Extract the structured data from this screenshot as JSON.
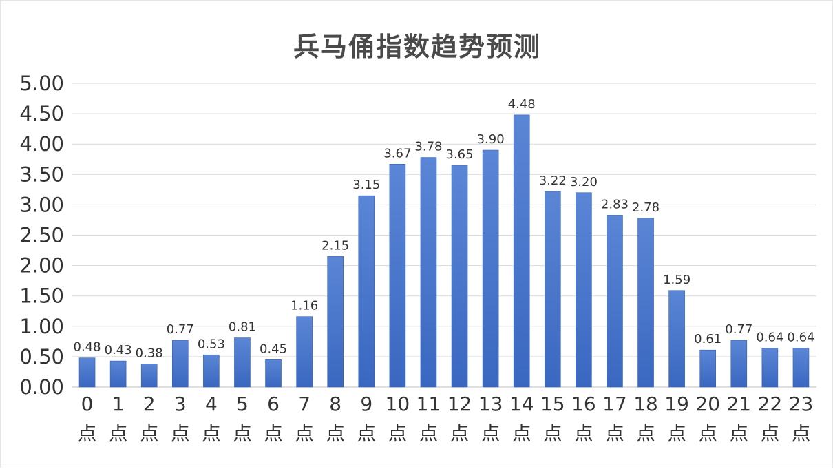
{
  "chart_data": {
    "type": "bar",
    "title": "兵马俑指数趋势预测",
    "xlabel": "",
    "ylabel": "",
    "ylim": [
      0,
      5
    ],
    "yticks": [
      "0.00",
      "0.50",
      "1.00",
      "1.50",
      "2.00",
      "2.50",
      "3.00",
      "3.50",
      "4.00",
      "4.50",
      "5.00"
    ],
    "categories": [
      "0",
      "1",
      "2",
      "3",
      "4",
      "5",
      "6",
      "7",
      "8",
      "9",
      "10",
      "11",
      "12",
      "13",
      "14",
      "15",
      "16",
      "17",
      "18",
      "19",
      "20",
      "21",
      "22",
      "23"
    ],
    "category_suffix": "点",
    "values": [
      0.48,
      0.43,
      0.38,
      0.77,
      0.53,
      0.81,
      0.45,
      1.16,
      2.15,
      3.15,
      3.67,
      3.78,
      3.65,
      3.9,
      4.48,
      3.22,
      3.2,
      2.83,
      2.78,
      1.59,
      0.61,
      0.77,
      0.64,
      0.64
    ],
    "value_labels": [
      "0.48",
      "0.43",
      "0.38",
      "0.77",
      "0.53",
      "0.81",
      "0.45",
      "1.16",
      "2.15",
      "3.15",
      "3.67",
      "3.78",
      "3.65",
      "3.90",
      "4.48",
      "3.22",
      "3.20",
      "2.83",
      "2.78",
      "1.59",
      "0.61",
      "0.77",
      "0.64",
      "0.64"
    ],
    "grid": true,
    "legend": "none",
    "bar_color": "#4472c4"
  }
}
